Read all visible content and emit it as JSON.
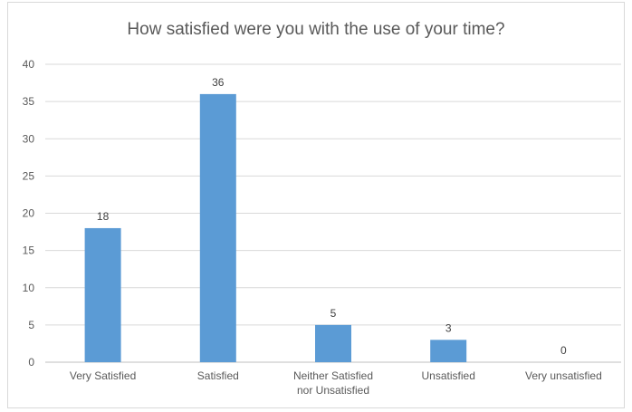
{
  "chart_data": {
    "type": "bar",
    "title": "How satisfied were you with the use of your time?",
    "categories": [
      "Very Satisfied",
      "Satisfied",
      "Neither Satisfied nor Unsatisfied",
      "Unsatisfied",
      "Very unsatisfied"
    ],
    "category_lines": [
      [
        "Very Satisfied"
      ],
      [
        "Satisfied"
      ],
      [
        "Neither Satisfied",
        "nor Unsatisfied"
      ],
      [
        "Unsatisfied"
      ],
      [
        "Very unsatisfied"
      ]
    ],
    "values": [
      18,
      36,
      5,
      3,
      0
    ],
    "data_labels": [
      "18",
      "36",
      "5",
      "3",
      "0"
    ],
    "ylim": [
      0,
      40
    ],
    "yticks": [
      0,
      5,
      10,
      15,
      20,
      25,
      30,
      35,
      40
    ],
    "grid": true,
    "xlabel": "",
    "ylabel": "",
    "bar_color": "#5b9bd5"
  }
}
